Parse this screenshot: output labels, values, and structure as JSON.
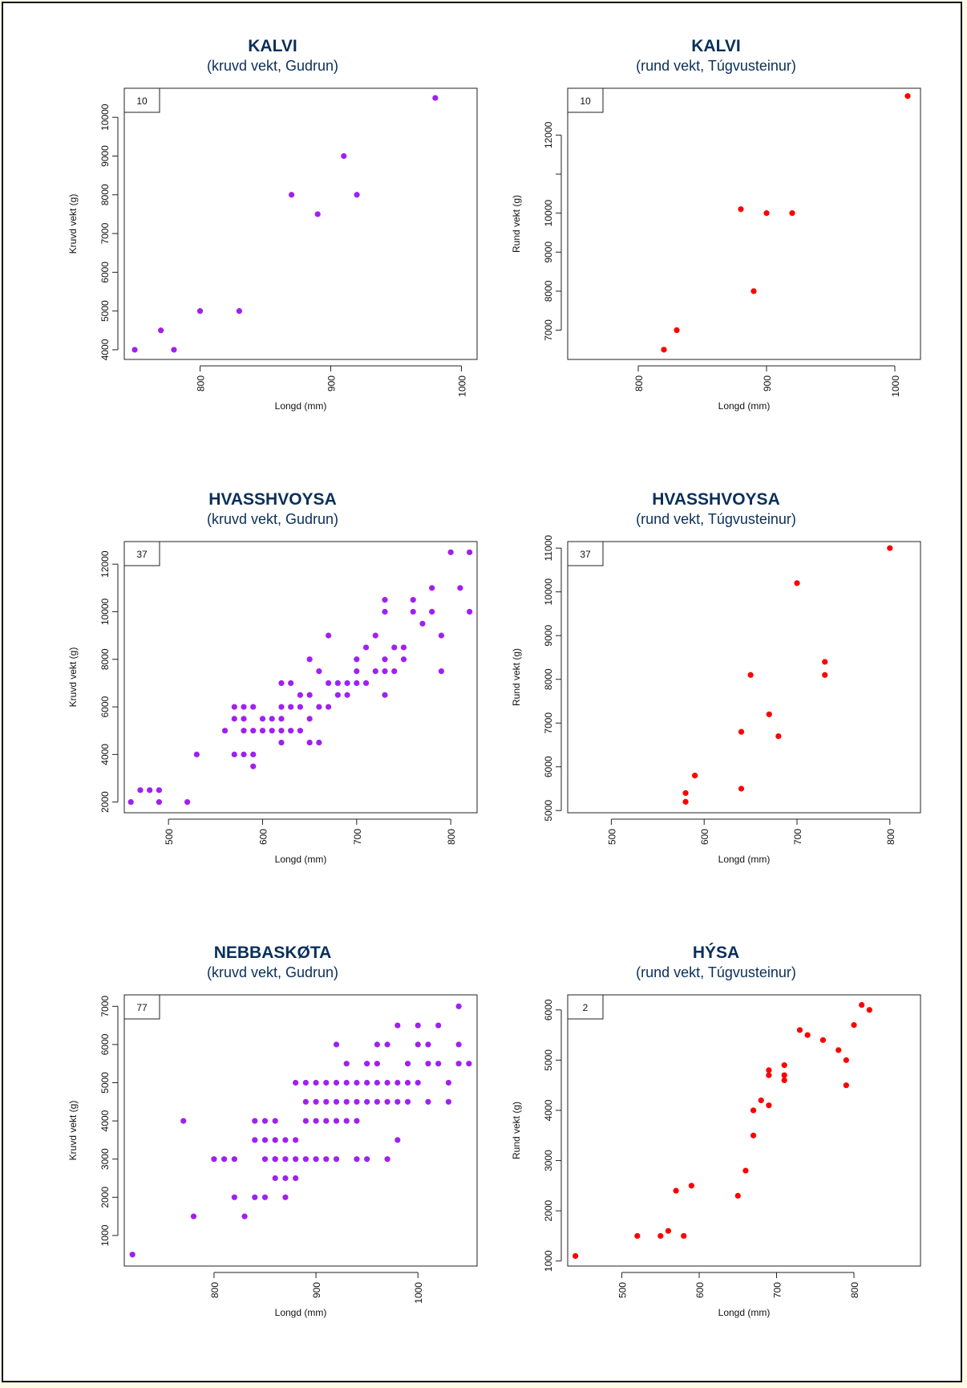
{
  "chart_data": [
    {
      "type": "scatter",
      "title": "KALVI",
      "subtitle": "(kruvd vekt, Gudrun)",
      "xlabel": "Longd (mm)",
      "ylabel": "Kruvd vekt (g)",
      "count_label": "10",
      "color": "#a020f0",
      "xlim": [
        742,
        1012
      ],
      "ylim": [
        3750,
        10750
      ],
      "xticks": [
        800,
        900,
        1000
      ],
      "yticks": [
        4000,
        5000,
        6000,
        7000,
        8000,
        9000,
        10000
      ],
      "x": [
        750,
        770,
        780,
        800,
        830,
        870,
        890,
        910,
        920,
        980
      ],
      "y": [
        4000,
        4500,
        4000,
        5000,
        5000,
        8000,
        7500,
        9000,
        8000,
        10500
      ]
    },
    {
      "type": "scatter",
      "title": "KALVI",
      "subtitle": "(rund vekt, Túgvusteinur)",
      "xlabel": "Longd (mm)",
      "ylabel": "Rund vekt (g)",
      "count_label": "10",
      "color": "#ff0000",
      "xlim": [
        745,
        1020
      ],
      "ylim": [
        6250,
        13200
      ],
      "xticks": [
        800,
        900,
        1000
      ],
      "yticks": [
        7000,
        8000,
        9000,
        10000,
        11000,
        12000
      ],
      "ytick_labels": [
        "7000",
        "8000",
        "9000",
        "10000",
        "",
        "12000"
      ],
      "x": [
        820,
        830,
        880,
        890,
        900,
        920,
        1010
      ],
      "y": [
        6500,
        7000,
        10100,
        8000,
        10000,
        10000,
        13000
      ]
    },
    {
      "type": "scatter",
      "title": "HVASSHVOYSA",
      "subtitle": "(kruvd vekt, Gudrun)",
      "xlabel": "Longd (mm)",
      "ylabel": "Kruvd vekt (g)",
      "count_label": "37",
      "color": "#a020f0",
      "xlim": [
        453,
        828
      ],
      "ylim": [
        1550,
        12950
      ],
      "xticks": [
        500,
        600,
        700,
        800
      ],
      "yticks": [
        2000,
        4000,
        6000,
        8000,
        10000,
        12000
      ],
      "x": [
        460,
        470,
        480,
        490,
        490,
        520,
        530,
        560,
        570,
        570,
        570,
        580,
        580,
        580,
        580,
        590,
        590,
        590,
        590,
        600,
        600,
        610,
        610,
        620,
        620,
        620,
        620,
        620,
        630,
        630,
        630,
        640,
        640,
        640,
        650,
        650,
        650,
        650,
        660,
        660,
        660,
        670,
        670,
        670,
        680,
        680,
        690,
        690,
        700,
        700,
        700,
        710,
        710,
        720,
        720,
        730,
        730,
        730,
        730,
        730,
        740,
        740,
        750,
        750,
        760,
        760,
        770,
        780,
        780,
        790,
        790,
        800,
        810,
        820,
        820
      ],
      "y": [
        2000,
        2500,
        2500,
        2500,
        2000,
        2000,
        4000,
        5000,
        6000,
        5500,
        4000,
        6000,
        5000,
        5500,
        4000,
        6000,
        5000,
        4000,
        3500,
        5000,
        5500,
        5500,
        5000,
        7000,
        6000,
        5500,
        5000,
        4500,
        7000,
        6000,
        5000,
        6500,
        6000,
        5000,
        8000,
        6500,
        5500,
        4500,
        7500,
        6000,
        4500,
        9000,
        7000,
        6000,
        7000,
        6500,
        7000,
        6500,
        8000,
        7500,
        7000,
        8500,
        7000,
        9000,
        7500,
        10500,
        10000,
        8000,
        7500,
        6500,
        8500,
        7500,
        8500,
        8000,
        10500,
        10000,
        9500,
        11000,
        10000,
        9000,
        7500,
        12500,
        11000,
        12500,
        10000
      ]
    },
    {
      "type": "scatter",
      "title": "HVASSHVOYSA",
      "subtitle": "(rund vekt, Túgvusteinur)",
      "xlabel": "Longd (mm)",
      "ylabel": "Rund vekt (g)",
      "count_label": "37",
      "color": "#ff0000",
      "xlim": [
        453,
        833
      ],
      "ylim": [
        4950,
        11150
      ],
      "xticks": [
        500,
        600,
        700,
        800
      ],
      "yticks": [
        5000,
        6000,
        7000,
        8000,
        9000,
        10000,
        11000
      ],
      "x": [
        580,
        580,
        590,
        640,
        640,
        650,
        670,
        680,
        700,
        730,
        730,
        800
      ],
      "y": [
        5200,
        5400,
        5800,
        5500,
        6800,
        8100,
        7200,
        6700,
        10200,
        8400,
        8100,
        11000
      ]
    },
    {
      "type": "scatter",
      "title": "NEBBASKØTA",
      "subtitle": "(kruvd vekt, Gudrun)",
      "xlabel": "Longd (mm)",
      "ylabel": "Kruvd vekt (g)",
      "count_label": "77",
      "color": "#a020f0",
      "xlim": [
        712,
        1058
      ],
      "ylim": [
        200,
        7300
      ],
      "xticks": [
        800,
        900,
        1000
      ],
      "yticks": [
        1000,
        2000,
        3000,
        4000,
        5000,
        6000,
        7000
      ],
      "x": [
        720,
        770,
        780,
        800,
        810,
        820,
        820,
        830,
        840,
        840,
        840,
        850,
        850,
        850,
        850,
        860,
        860,
        860,
        860,
        860,
        870,
        870,
        870,
        870,
        880,
        880,
        880,
        880,
        890,
        890,
        890,
        890,
        900,
        900,
        900,
        900,
        910,
        910,
        910,
        910,
        920,
        920,
        920,
        920,
        920,
        930,
        930,
        930,
        930,
        940,
        940,
        940,
        940,
        950,
        950,
        950,
        950,
        960,
        960,
        960,
        960,
        970,
        970,
        970,
        970,
        980,
        980,
        980,
        980,
        990,
        990,
        990,
        1000,
        1000,
        1000,
        1010,
        1010,
        1010,
        1020,
        1020,
        1030,
        1030,
        1040,
        1040,
        1040,
        1050
      ],
      "y": [
        500,
        4000,
        1500,
        3000,
        3000,
        3000,
        2000,
        1500,
        4000,
        3500,
        2000,
        4000,
        3500,
        3000,
        2000,
        4000,
        3500,
        3000,
        2500,
        3000,
        3500,
        3000,
        2500,
        2000,
        5000,
        3500,
        3000,
        2500,
        5000,
        4500,
        4000,
        3000,
        5000,
        4500,
        4000,
        3000,
        5000,
        4500,
        4000,
        3000,
        6000,
        5000,
        4500,
        4000,
        3000,
        5500,
        5000,
        4500,
        4000,
        5000,
        4500,
        4000,
        3000,
        5500,
        5000,
        4500,
        3000,
        6000,
        5500,
        5000,
        4500,
        6000,
        5000,
        4500,
        3000,
        6500,
        5000,
        4500,
        3500,
        5500,
        5000,
        4500,
        6500,
        6000,
        5000,
        6000,
        5500,
        4500,
        6500,
        5500,
        5000,
        4500,
        7000,
        6000,
        5500,
        5500
      ],
      "comment_count": "77"
    },
    {
      "type": "scatter",
      "title": "HÝSA",
      "subtitle": "(rund vekt, Túgvusteinur)",
      "xlabel": "Longd (mm)",
      "ylabel": "Rund vekt (g)",
      "count_label": "2",
      "color": "#ff0000",
      "xlim": [
        430,
        886
      ],
      "ylim": [
        900,
        6300
      ],
      "xticks": [
        500,
        600,
        700,
        800
      ],
      "yticks": [
        1000,
        2000,
        3000,
        4000,
        5000,
        6000
      ],
      "x": [
        440,
        520,
        550,
        560,
        570,
        580,
        590,
        650,
        660,
        670,
        670,
        680,
        690,
        690,
        690,
        710,
        710,
        710,
        730,
        740,
        760,
        780,
        790,
        790,
        800,
        810,
        820
      ],
      "y": [
        1100,
        1500,
        1500,
        1600,
        2400,
        1500,
        2500,
        2300,
        2800,
        3500,
        4000,
        4200,
        4100,
        4700,
        4800,
        4600,
        4700,
        4900,
        5600,
        5500,
        5400,
        5200,
        5000,
        4500,
        5700,
        6100,
        6000
      ]
    }
  ]
}
